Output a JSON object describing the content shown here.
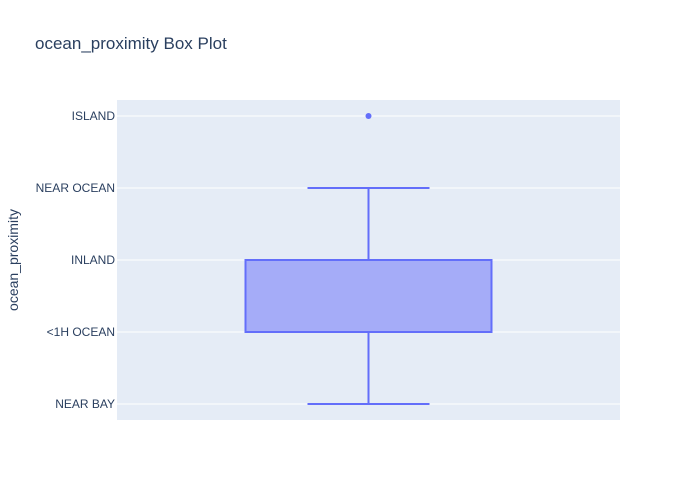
{
  "chart_data": {
    "type": "box",
    "title": "ocean_proximity Box Plot",
    "xlabel": "",
    "ylabel": "ocean_proximity",
    "orientation": "vertical",
    "y_categories": [
      "NEAR BAY",
      "<1H OCEAN",
      "INLAND",
      "NEAR OCEAN",
      "ISLAND"
    ],
    "grid": true,
    "legend": "none",
    "box": {
      "lower_whisker": "NEAR BAY",
      "q1": "<1H OCEAN",
      "median": "<1H OCEAN",
      "q3": "INLAND",
      "upper_whisker": "NEAR OCEAN",
      "outliers": [
        "ISLAND"
      ]
    },
    "colors": {
      "box_line": "#636efa",
      "box_fill": "#a5acf8",
      "plot_bg": "#e5ecf6",
      "grid": "#ffffff",
      "text": "#2a3f5f"
    }
  }
}
